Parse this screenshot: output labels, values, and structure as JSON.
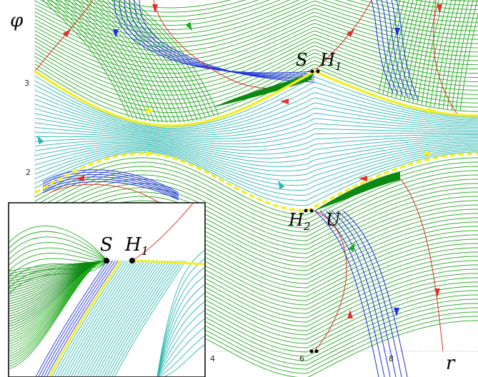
{
  "axes": {
    "y_label": "φ",
    "x_label": "r",
    "y_ticks": [
      "3",
      "2"
    ],
    "x_ticks": [
      "4",
      "6",
      "8"
    ]
  },
  "points": {
    "S": "S",
    "H1": "H",
    "H1_sub": "1",
    "H2": "H",
    "H2_sub": "2",
    "U": "U"
  },
  "inset": {
    "S": "S",
    "H1": "H",
    "H1_sub": "1"
  },
  "colors": {
    "green": "#22a81e",
    "teal": "#2bb6b0",
    "blue": "#1f2fe0",
    "red": "#e0302a",
    "yellow": "#f2ee2a",
    "dark_green": "#0a8a10"
  },
  "icons": [
    "arrow-head-icon",
    "saddle-point-icon"
  ]
}
